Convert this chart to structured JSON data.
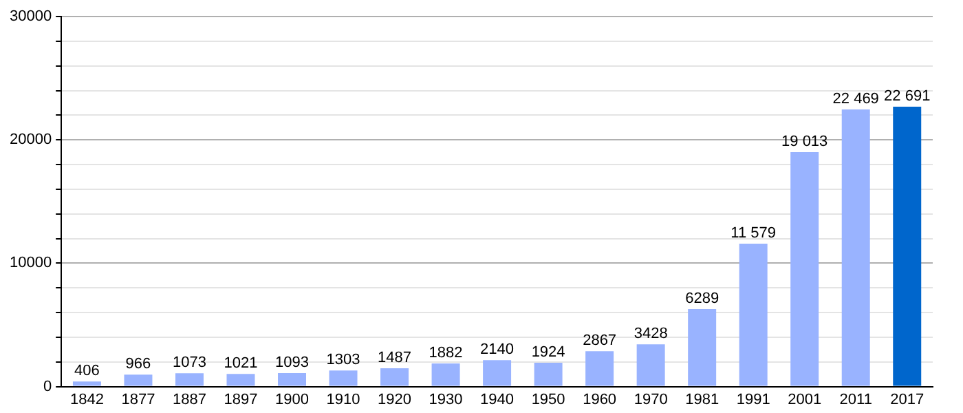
{
  "chart_data": {
    "type": "bar",
    "categories": [
      "1842",
      "1877",
      "1887",
      "1897",
      "1900",
      "1910",
      "1920",
      "1930",
      "1940",
      "1950",
      "1960",
      "1970",
      "1981",
      "1991",
      "2001",
      "2011",
      "2017"
    ],
    "values": [
      406,
      966,
      1073,
      1021,
      1093,
      1303,
      1487,
      1882,
      2140,
      1924,
      2867,
      3428,
      6289,
      11579,
      19013,
      22469,
      22691
    ],
    "value_labels": [
      "406",
      "966",
      "1073",
      "1021",
      "1093",
      "1303",
      "1487",
      "1882",
      "2140",
      "1924",
      "2867",
      "3428",
      "6289",
      "11 579",
      "19 013",
      "22 469",
      "22 691"
    ],
    "colors": [
      "#99b3ff",
      "#99b3ff",
      "#99b3ff",
      "#99b3ff",
      "#99b3ff",
      "#99b3ff",
      "#99b3ff",
      "#99b3ff",
      "#99b3ff",
      "#99b3ff",
      "#99b3ff",
      "#99b3ff",
      "#99b3ff",
      "#99b3ff",
      "#99b3ff",
      "#99b3ff",
      "#0066cc"
    ],
    "ylim": [
      0,
      30000
    ],
    "yticks": [
      0,
      {
        "value": 2000,
        "label": null
      },
      {
        "value": 4000,
        "label": null
      },
      {
        "value": 6000,
        "label": null
      },
      {
        "value": 8000,
        "label": null
      },
      10000,
      {
        "value": 12000,
        "label": null
      },
      {
        "value": 14000,
        "label": null
      },
      {
        "value": 16000,
        "label": null
      },
      {
        "value": 18000,
        "label": null
      },
      20000,
      {
        "value": 22000,
        "label": null
      },
      {
        "value": 24000,
        "label": null
      },
      {
        "value": 26000,
        "label": null
      },
      {
        "value": 28000,
        "label": null
      },
      30000
    ],
    "grid": "y",
    "legend": false
  }
}
